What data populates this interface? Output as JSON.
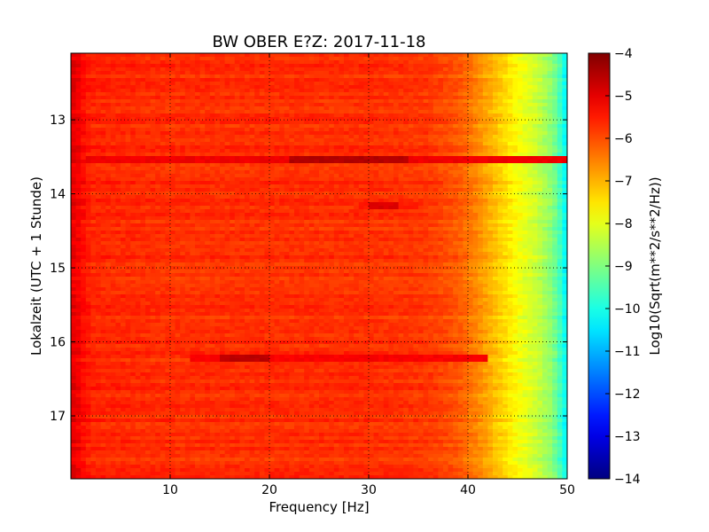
{
  "chart_data": {
    "type": "heatmap",
    "title": "BW OBER E?Z: 2017-11-18",
    "xlabel": "Frequency [Hz]",
    "ylabel": "Lokalzeit (UTC + 1 Stunde)",
    "xlim": [
      0,
      50
    ],
    "ylim": [
      12.1,
      17.85
    ],
    "y_inverted": true,
    "grid": true,
    "x_ticks": [
      10,
      20,
      30,
      40,
      50
    ],
    "y_ticks": [
      13,
      14,
      15,
      16,
      17
    ],
    "colormap": "jet",
    "colorbar": {
      "label": "Log10(Sqrt(m**2/s**2/Hz))",
      "range": [
        -14,
        -4
      ],
      "ticks": [
        -4,
        -5,
        -6,
        -7,
        -8,
        -9,
        -10,
        -11,
        -12,
        -13,
        -14
      ]
    },
    "background_profile": {
      "frequency_hz": [
        0,
        0.5,
        2,
        10,
        20,
        30,
        36,
        39,
        41,
        43,
        45,
        47,
        48.5,
        49.5,
        50
      ],
      "log10_value": [
        -5.0,
        -5.1,
        -5.6,
        -5.7,
        -5.7,
        -5.7,
        -5.8,
        -6.1,
        -6.6,
        -7.2,
        -7.8,
        -8.3,
        -8.9,
        -9.8,
        -10.5
      ]
    },
    "disturbance_bands": [
      {
        "time_h": 13.55,
        "frequency_hz": [
          1.5,
          50
        ],
        "peak_frequency_hz": [
          22,
          34
        ],
        "peak_log10_value": -4.5
      },
      {
        "time_h": 16.22,
        "frequency_hz": [
          12,
          42
        ],
        "peak_frequency_hz": [
          15,
          20
        ],
        "peak_log10_value": -4.6
      },
      {
        "time_h": 14.15,
        "frequency_hz": [
          29,
          35
        ],
        "peak_frequency_hz": [
          30,
          33
        ],
        "peak_log10_value": -4.9
      }
    ]
  }
}
